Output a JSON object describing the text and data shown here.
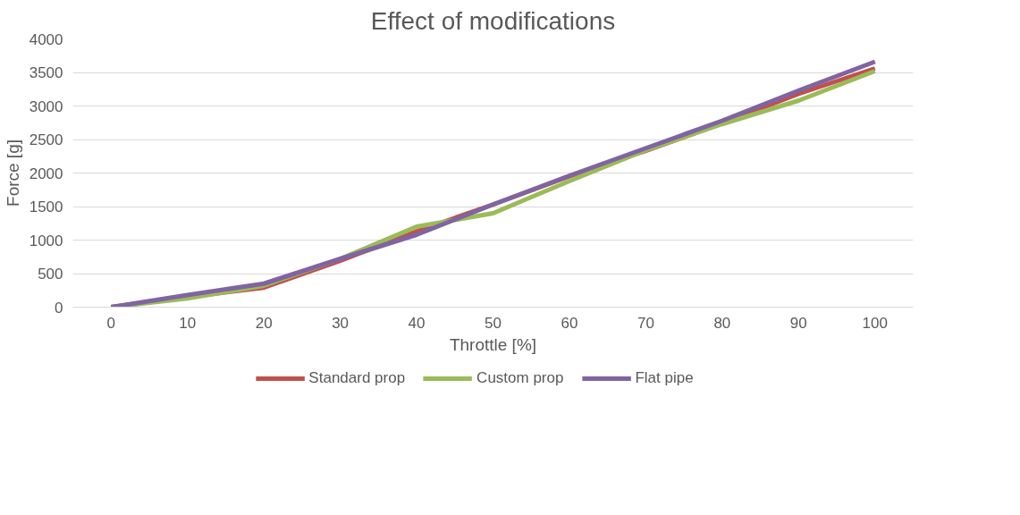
{
  "chart_data": {
    "type": "line",
    "title": "Effect of modifications",
    "xlabel": "Throttle [%]",
    "ylabel": "Force [g]",
    "categories": [
      "0",
      "10",
      "20",
      "30",
      "40",
      "50",
      "60",
      "70",
      "80",
      "90",
      "100"
    ],
    "series": [
      {
        "name": "Standard prop",
        "color": "#c0504d",
        "values": [
          0,
          150,
          290,
          690,
          1130,
          1530,
          1950,
          2330,
          2740,
          3180,
          3560
        ]
      },
      {
        "name": "Custom prop",
        "color": "#9bbb59",
        "values": [
          0,
          130,
          320,
          720,
          1200,
          1400,
          1880,
          2340,
          2730,
          3080,
          3520
        ]
      },
      {
        "name": "Flat pipe",
        "color": "#8064a2",
        "values": [
          0,
          180,
          350,
          720,
          1080,
          1530,
          1960,
          2370,
          2780,
          3230,
          3660
        ]
      }
    ],
    "ylim": [
      0,
      4000
    ],
    "yticks": [
      0,
      500,
      1000,
      1500,
      2000,
      2500,
      3000,
      3500,
      4000
    ],
    "grid": "y",
    "legend": "bottom",
    "marker": "none",
    "line_style": "solid"
  }
}
